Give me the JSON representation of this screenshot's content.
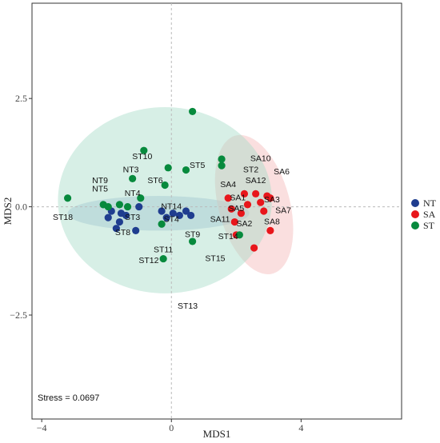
{
  "chart_data": {
    "type": "scatter",
    "title": "",
    "xlabel": "MDS1",
    "ylabel": "MDS2",
    "xlim": [
      -4.3,
      7.1
    ],
    "ylim": [
      -4.9,
      4.7
    ],
    "xticks": [
      -4,
      0,
      4
    ],
    "yticks": [
      -2.5,
      0.0,
      2.5
    ],
    "xtick_labels": [
      "−4",
      "0",
      "4"
    ],
    "ytick_labels": [
      "−2.5",
      "0.0",
      "2.5"
    ],
    "grid": false,
    "zero_lines": true,
    "legend_position": "right",
    "annotation": "Stress = 0.0697",
    "series": [
      {
        "name": "NT",
        "color": "#1f3d8f",
        "ellipse": {
          "cx": -0.4,
          "cy": -0.15,
          "rx": 2.8,
          "ry": 0.4,
          "angle": 0,
          "fill": "#9fb7d6"
        },
        "points": [
          [
            -1.95,
            -0.25
          ],
          [
            -1.85,
            -0.1
          ],
          [
            -1.7,
            -0.5
          ],
          [
            -1.6,
            -0.35
          ],
          [
            -1.55,
            -0.15
          ],
          [
            -1.4,
            -0.2
          ],
          [
            -1.1,
            -0.55
          ],
          [
            -1.0,
            0.0
          ],
          [
            -0.3,
            -0.1
          ],
          [
            -0.15,
            -0.25
          ],
          [
            0.05,
            -0.15
          ],
          [
            0.25,
            -0.2
          ],
          [
            0.45,
            -0.1
          ],
          [
            0.6,
            -0.2
          ]
        ],
        "labels": [
          {
            "text": "NT9",
            "x": -2.2,
            "y": 0.55
          },
          {
            "text": "NT5",
            "x": -2.2,
            "y": 0.35
          },
          {
            "text": "NT3",
            "x": -1.25,
            "y": 0.8
          },
          {
            "text": "NT4",
            "x": -1.2,
            "y": 0.25
          },
          {
            "text": "NT14",
            "x": 0.0,
            "y": -0.05
          }
        ]
      },
      {
        "name": "SA",
        "color": "#e8161b",
        "ellipse": {
          "cx": 2.55,
          "cy": 0.05,
          "rx": 1.1,
          "ry": 1.65,
          "angle": 15,
          "fill": "#f5b7b7"
        },
        "points": [
          [
            1.75,
            0.2
          ],
          [
            1.85,
            -0.05
          ],
          [
            1.95,
            -0.35
          ],
          [
            2.0,
            -0.65
          ],
          [
            2.15,
            -0.15
          ],
          [
            2.25,
            0.3
          ],
          [
            2.35,
            0.05
          ],
          [
            2.6,
            0.3
          ],
          [
            2.75,
            0.1
          ],
          [
            2.85,
            -0.1
          ],
          [
            2.95,
            0.25
          ],
          [
            3.05,
            0.2
          ],
          [
            3.05,
            -0.55
          ],
          [
            2.55,
            -0.95
          ]
        ],
        "labels": [
          {
            "text": "SA10",
            "x": 2.75,
            "y": 1.05
          },
          {
            "text": "SA12",
            "x": 2.6,
            "y": 0.55
          },
          {
            "text": "SA6",
            "x": 3.4,
            "y": 0.75
          },
          {
            "text": "SA4",
            "x": 1.75,
            "y": 0.45
          },
          {
            "text": "SA1",
            "x": 2.05,
            "y": 0.15
          },
          {
            "text": "SA3",
            "x": 3.1,
            "y": 0.1
          },
          {
            "text": "SA5",
            "x": 2.0,
            "y": -0.1
          },
          {
            "text": "SA7",
            "x": 3.45,
            "y": -0.15
          },
          {
            "text": "SA11",
            "x": 1.5,
            "y": -0.35
          },
          {
            "text": "SA2",
            "x": 2.25,
            "y": -0.45
          },
          {
            "text": "SA8",
            "x": 3.1,
            "y": -0.4
          }
        ]
      },
      {
        "name": "ST",
        "color": "#078a3d",
        "ellipse": {
          "cx": -0.2,
          "cy": 0.15,
          "rx": 3.3,
          "ry": 2.15,
          "angle": 0,
          "fill": "#a7dcc8"
        },
        "points": [
          [
            0.65,
            2.2
          ],
          [
            -0.85,
            1.3
          ],
          [
            1.55,
            1.1
          ],
          [
            1.55,
            0.95
          ],
          [
            0.45,
            0.85
          ],
          [
            -0.1,
            0.9
          ],
          [
            -1.2,
            0.65
          ],
          [
            -0.2,
            0.5
          ],
          [
            -3.2,
            0.2
          ],
          [
            -2.1,
            0.05
          ],
          [
            -1.95,
            0.0
          ],
          [
            -1.6,
            0.05
          ],
          [
            -1.35,
            0.0
          ],
          [
            -0.95,
            0.2
          ],
          [
            -0.3,
            -0.4
          ],
          [
            0.65,
            -0.8
          ],
          [
            2.1,
            -0.65
          ],
          [
            -0.25,
            -1.2
          ]
        ],
        "labels": [
          {
            "text": "ST10",
            "x": -0.9,
            "y": 1.1
          },
          {
            "text": "ST5",
            "x": 0.8,
            "y": 0.9
          },
          {
            "text": "ST2",
            "x": 2.45,
            "y": 0.8
          },
          {
            "text": "ST6",
            "x": -0.5,
            "y": 0.55
          },
          {
            "text": "ST18",
            "x": -3.35,
            "y": -0.3
          },
          {
            "text": "ST3",
            "x": -1.2,
            "y": -0.3
          },
          {
            "text": "ST4",
            "x": 0.0,
            "y": -0.35
          },
          {
            "text": "ST8",
            "x": -1.5,
            "y": -0.65
          },
          {
            "text": "ST9",
            "x": 0.65,
            "y": -0.7
          },
          {
            "text": "ST14",
            "x": 1.75,
            "y": -0.75
          },
          {
            "text": "ST11",
            "x": -0.25,
            "y": -1.05
          },
          {
            "text": "ST12",
            "x": -0.7,
            "y": -1.3
          },
          {
            "text": "ST15",
            "x": 1.35,
            "y": -1.25
          },
          {
            "text": "ST13",
            "x": 0.5,
            "y": -2.35
          }
        ]
      }
    ]
  }
}
